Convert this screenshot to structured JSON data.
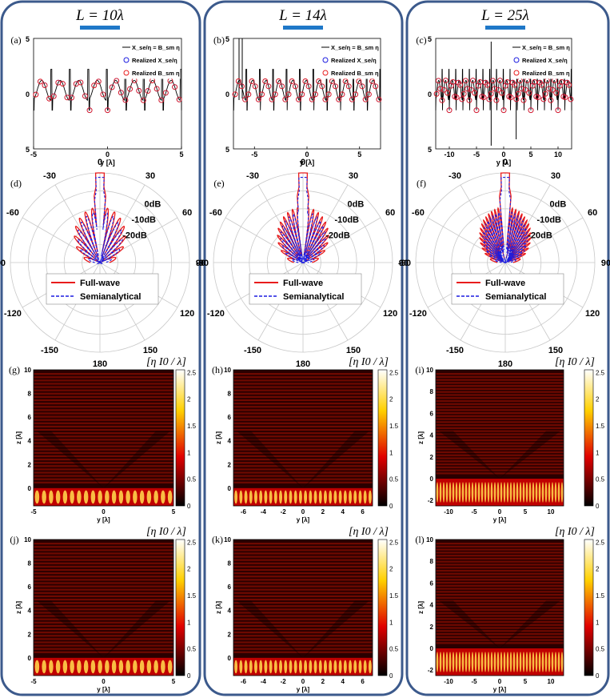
{
  "figure": {
    "columns": [
      {
        "header": "L = 10λ",
        "panels": {
          "line": "(a)",
          "polar": "(d)",
          "map_full": "(g)",
          "map_semi": "(j)"
        }
      },
      {
        "header": "L = 14λ",
        "panels": {
          "line": "(b)",
          "polar": "(e)",
          "map_full": "(h)",
          "map_semi": "(k)"
        }
      },
      {
        "header": "L = 25λ",
        "panels": {
          "line": "(c)",
          "polar": "(f)",
          "map_full": "(i)",
          "map_semi": "(l)"
        }
      }
    ],
    "colors": {
      "frame": "#3c5a8c",
      "header_bar": "#1f78c8",
      "full_wave": "#e81c1c",
      "semianalytical": "#1c1ce0",
      "grid": "#c8c8c8"
    }
  },
  "chart_data": [
    {
      "type": "line",
      "panels": [
        "(a)",
        "(b)",
        "(c)"
      ],
      "title": "",
      "xlabel": "y [λ]",
      "ylabel": "",
      "ylim": [
        -5,
        5
      ],
      "ytick_labels": [
        "5",
        "0",
        "5"
      ],
      "legend": [
        "X_se/η = B_sm η",
        "Realized X_se/η",
        "Realized B_sm η"
      ],
      "legend_position": "top-right",
      "series": [
        {
          "name": "X_se/η = B_sm η",
          "color": "#000000",
          "style": "line"
        },
        {
          "name": "Realized X_se/η",
          "color": "#1c1ce0",
          "style": "circle-marker"
        },
        {
          "name": "Realized B_sm η",
          "color": "#e81c1c",
          "style": "circle-marker"
        }
      ],
      "x_ranges": [
        [
          -5,
          5
        ],
        [
          -7,
          7
        ],
        [
          -12.5,
          12.5
        ]
      ],
      "x_tick_labels": [
        [
          "-5",
          "0",
          "5"
        ],
        [
          "-5",
          "0",
          "5"
        ],
        [
          "-10",
          "-5",
          "0",
          "5",
          "10"
        ]
      ],
      "approx_values": [
        {
          "y": [
            -4.8,
            -4.5,
            -4.2,
            -3.9,
            -3.6,
            -3.3,
            -3.0,
            -2.7,
            -2.4,
            -2.1,
            -1.8,
            -1.5,
            -1.2,
            -0.9,
            -0.6,
            -0.3,
            0.0,
            0.3,
            0.6,
            0.9,
            1.2,
            1.5,
            1.8,
            2.1,
            2.4,
            2.7,
            3.0,
            3.3,
            3.6,
            3.9,
            4.2,
            4.5,
            4.8
          ],
          "value": [
            0.8,
            0.9,
            -1.0,
            1.1,
            0.6,
            0.0,
            -0.6,
            1.0,
            0.5,
            -1.6,
            0.8,
            0.5,
            0.2,
            0.3,
            0.4,
            0.5,
            0.5,
            0.5,
            0.4,
            0.3,
            0.2,
            0.5,
            0.8,
            -1.6,
            0.5,
            1.0,
            -0.6,
            0.0,
            0.6,
            1.1,
            -1.0,
            0.9,
            0.8
          ]
        }
      ]
    },
    {
      "type": "polar",
      "panels": [
        "(d)",
        "(e)",
        "(f)"
      ],
      "angle_tick_labels": [
        "0",
        "30",
        "60",
        "90",
        "120",
        "150",
        "180",
        "-150",
        "-120",
        "-90",
        "-60",
        "-30"
      ],
      "radial_tick_labels": [
        "0dB",
        "-10dB",
        "-20dB"
      ],
      "radial_range_db": [
        -30,
        0
      ],
      "legend": [
        "Full-wave",
        "Semianalytical"
      ],
      "legend_position": "lower-center",
      "series": [
        {
          "name": "Full-wave",
          "color": "#e81c1c",
          "style": "solid"
        },
        {
          "name": "Semianalytical",
          "color": "#1c1ce0",
          "style": "dashed"
        }
      ],
      "main_beam_deg": 0,
      "main_beam_level_db": 0
    },
    {
      "type": "heatmap",
      "panels": [
        "(g)",
        "(h)",
        "(i)",
        "(j)",
        "(k)",
        "(l)"
      ],
      "colorbar_label": "[η I0 / λ]",
      "colorbar_ticks": [
        "0",
        "0.5",
        "1",
        "1.5",
        "2",
        "2.5"
      ],
      "colorbar_range": [
        0,
        2.5
      ],
      "colormap": "hot",
      "xlabel": "y [λ]",
      "ylabel": "z [λ]",
      "z_tick_labels_small": [
        "0",
        "2",
        "4",
        "6",
        "8",
        "10"
      ],
      "z_tick_labels_large": [
        "-2",
        "0",
        "2",
        "4",
        "6",
        "8",
        "10"
      ],
      "y_tick_labels": [
        [
          "-5",
          "0",
          "5"
        ],
        [
          "-6",
          "-4",
          "-2",
          "0",
          "2",
          "4",
          "6"
        ],
        [
          "-10",
          "-5",
          "0",
          "5",
          "10"
        ]
      ],
      "rows": [
        "Full-wave",
        "Semianalytical"
      ]
    }
  ]
}
